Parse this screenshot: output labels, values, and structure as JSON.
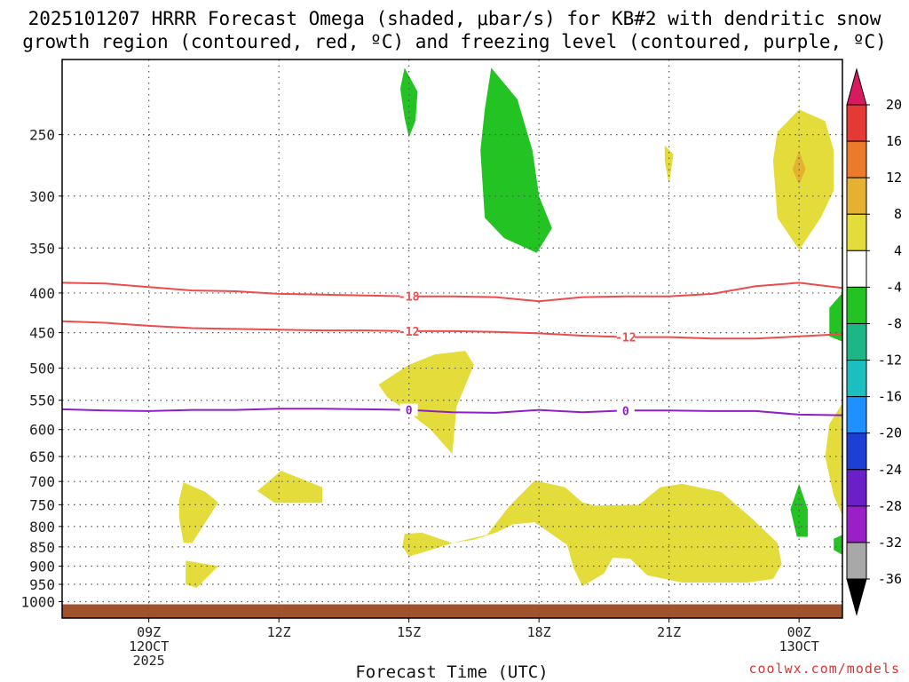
{
  "title_line1": "2025101207 HRRR Forecast Omega (shaded, μbar/s) for KB#2 with dendritic snow",
  "title_line2": "growth region (contoured, red, ºC) and freezing level (contoured, purple, ºC)",
  "credit": "coolwx.com/models",
  "chart_data": {
    "type": "heatmap",
    "title": "2025101207 HRRR Forecast Omega (shaded, μbar/s) for KB#2 with dendritic snow growth region (contoured, red, ºC) and freezing level (contoured, purple, ºC)",
    "xlabel": "Forecast Time (UTC)",
    "ylabel": "",
    "x_range_hours": [
      7,
      25
    ],
    "x_ticks": [
      {
        "hour": 9,
        "lines": [
          "09Z",
          "12OCT",
          "2025"
        ]
      },
      {
        "hour": 12,
        "lines": [
          "12Z"
        ]
      },
      {
        "hour": 15,
        "lines": [
          "15Z"
        ]
      },
      {
        "hour": 18,
        "lines": [
          "18Z"
        ]
      },
      {
        "hour": 21,
        "lines": [
          "21Z"
        ]
      },
      {
        "hour": 24,
        "lines": [
          "00Z",
          "13OCT"
        ]
      }
    ],
    "y_scale": "log-pressure",
    "y_range_hpa": [
      1050,
      200
    ],
    "y_ticks": [
      250,
      300,
      350,
      400,
      450,
      500,
      550,
      600,
      650,
      700,
      750,
      800,
      850,
      900,
      950,
      1000
    ],
    "grid": true,
    "colorbar": {
      "labels": [
        20,
        16,
        12,
        8,
        4,
        -4,
        -8,
        -12,
        -16,
        -20,
        -24,
        -28,
        -32,
        -36
      ],
      "colors": [
        "#d81b60",
        "#e53935",
        "#ec7a2b",
        "#e6b030",
        "#e4dc3a",
        "#ffffff",
        "#22c322",
        "#1db787",
        "#1cbfbf",
        "#1e90ff",
        "#1e3fd6",
        "#6a1fc9",
        "#9b1fc9",
        "#a8a8a8",
        "#000000"
      ]
    },
    "series": [
      {
        "name": "-18",
        "color": "#ec4c4c",
        "points": [
          [
            7,
            388
          ],
          [
            8,
            389
          ],
          [
            9,
            393
          ],
          [
            10,
            397
          ],
          [
            11,
            398
          ],
          [
            12,
            401
          ],
          [
            13,
            402
          ],
          [
            14,
            403
          ],
          [
            15,
            404
          ],
          [
            16,
            404
          ],
          [
            17,
            405
          ],
          [
            18,
            410
          ],
          [
            19,
            405
          ],
          [
            20,
            404
          ],
          [
            21,
            404
          ],
          [
            22,
            401
          ],
          [
            23,
            392
          ],
          [
            24,
            388
          ],
          [
            25,
            394
          ]
        ],
        "labels_at": [
          15
        ]
      },
      {
        "name": "-12",
        "color": "#ec4c4c",
        "points": [
          [
            7,
            435
          ],
          [
            8,
            437
          ],
          [
            9,
            441
          ],
          [
            10,
            444
          ],
          [
            11,
            445
          ],
          [
            12,
            446
          ],
          [
            13,
            447
          ],
          [
            14,
            447
          ],
          [
            15,
            448
          ],
          [
            16,
            448
          ],
          [
            17,
            449
          ],
          [
            18,
            451
          ],
          [
            19,
            454
          ],
          [
            20,
            456
          ],
          [
            21,
            456
          ],
          [
            22,
            458
          ],
          [
            23,
            458
          ],
          [
            24,
            455
          ],
          [
            25,
            452
          ]
        ],
        "labels_at": [
          15,
          20
        ]
      },
      {
        "name": "0",
        "color": "#8e1fc4",
        "points": [
          [
            7,
            565
          ],
          [
            8,
            567
          ],
          [
            9,
            568
          ],
          [
            10,
            566
          ],
          [
            11,
            566
          ],
          [
            12,
            564
          ],
          [
            13,
            564
          ],
          [
            14,
            565
          ],
          [
            15,
            566
          ],
          [
            16,
            570
          ],
          [
            17,
            571
          ],
          [
            18,
            566
          ],
          [
            19,
            570
          ],
          [
            20,
            567
          ],
          [
            21,
            567
          ],
          [
            22,
            568
          ],
          [
            23,
            568
          ],
          [
            24,
            574
          ],
          [
            25,
            575
          ]
        ],
        "labels_at": [
          15,
          20
        ]
      }
    ],
    "omega_areas": [
      {
        "range": "-8 to -4",
        "color": "#22c322",
        "polygon": [
          [
            14.9,
            205
          ],
          [
            15.2,
            220
          ],
          [
            15.15,
            240
          ],
          [
            15.0,
            252
          ],
          [
            14.9,
            238
          ],
          [
            14.8,
            218
          ]
        ]
      },
      {
        "range": "-8 to -4",
        "color": "#22c322",
        "polygon": [
          [
            16.9,
            205
          ],
          [
            16.75,
            232
          ],
          [
            16.65,
            262
          ],
          [
            16.75,
            320
          ],
          [
            17.2,
            340
          ],
          [
            17.95,
            355
          ],
          [
            18.3,
            330
          ],
          [
            18.0,
            300
          ],
          [
            17.85,
            262
          ],
          [
            17.5,
            225
          ]
        ]
      },
      {
        "range": "-8 to -4",
        "color": "#22c322",
        "polygon": [
          [
            24.7,
            418
          ],
          [
            25,
            400
          ],
          [
            25,
            462
          ],
          [
            24.7,
            455
          ]
        ]
      },
      {
        "range": "-8 to -4",
        "color": "#22c322",
        "polygon": [
          [
            24.0,
            705
          ],
          [
            24.2,
            760
          ],
          [
            24.2,
            825
          ],
          [
            23.95,
            825
          ],
          [
            23.8,
            760
          ]
        ]
      },
      {
        "range": "-8 to -4",
        "color": "#22c322",
        "polygon": [
          [
            24.8,
            830
          ],
          [
            25,
            820
          ],
          [
            25,
            870
          ],
          [
            24.8,
            858
          ]
        ]
      },
      {
        "range": "4 to 8",
        "color": "#e4dc3a",
        "polygon": [
          [
            20.9,
            258
          ],
          [
            21.1,
            265
          ],
          [
            21.0,
            290
          ],
          [
            20.9,
            270
          ]
        ]
      },
      {
        "range": "4 to 8",
        "color": "#e4dc3a",
        "polygon": [
          [
            24.0,
            232
          ],
          [
            24.6,
            240
          ],
          [
            24.8,
            262
          ],
          [
            24.8,
            295
          ],
          [
            24.5,
            320
          ],
          [
            24.0,
            352
          ],
          [
            23.5,
            320
          ],
          [
            23.4,
            270
          ],
          [
            23.5,
            248
          ]
        ]
      },
      {
        "range": "8 to 12",
        "color": "#e6b030",
        "polygon": [
          [
            24.0,
            262
          ],
          [
            24.15,
            277
          ],
          [
            24.0,
            290
          ],
          [
            23.85,
            277
          ]
        ]
      },
      {
        "range": "4 to 8",
        "color": "#e4dc3a",
        "polygon": [
          [
            14.3,
            525
          ],
          [
            15.0,
            495
          ],
          [
            15.6,
            480
          ],
          [
            16.3,
            475
          ],
          [
            16.5,
            495
          ],
          [
            16.1,
            560
          ],
          [
            16.0,
            645
          ],
          [
            15.5,
            600
          ],
          [
            14.9,
            565
          ],
          [
            14.5,
            545
          ]
        ]
      },
      {
        "range": "4 to 8",
        "color": "#e4dc3a",
        "polygon": [
          [
            25,
            555
          ],
          [
            24.7,
            590
          ],
          [
            24.6,
            650
          ],
          [
            24.8,
            730
          ],
          [
            25,
            775
          ]
        ]
      },
      {
        "range": "4 to 8",
        "color": "#e4dc3a",
        "polygon": [
          [
            9.8,
            702
          ],
          [
            10.3,
            722
          ],
          [
            10.6,
            745
          ],
          [
            10.0,
            840
          ],
          [
            9.8,
            840
          ],
          [
            9.7,
            780
          ],
          [
            9.7,
            740
          ]
        ]
      },
      {
        "range": "4 to 8",
        "color": "#e4dc3a",
        "polygon": [
          [
            9.85,
            885
          ],
          [
            10.6,
            900
          ],
          [
            10.1,
            960
          ],
          [
            9.85,
            950
          ]
        ]
      },
      {
        "range": "4 to 8",
        "color": "#e4dc3a",
        "polygon": [
          [
            12.05,
            678
          ],
          [
            13.0,
            712
          ],
          [
            13.0,
            746
          ],
          [
            11.9,
            746
          ],
          [
            11.5,
            720
          ]
        ]
      },
      {
        "range": "4 to 8",
        "color": "#e4dc3a",
        "polygon": [
          [
            14.9,
            818
          ],
          [
            15.3,
            815
          ],
          [
            16.0,
            840
          ],
          [
            15.5,
            858
          ],
          [
            15.0,
            875
          ],
          [
            14.85,
            848
          ]
        ]
      },
      {
        "range": "4 to 8",
        "color": "#e4dc3a",
        "polygon": [
          [
            16.0,
            840
          ],
          [
            16.8,
            820
          ],
          [
            17.3,
            755
          ],
          [
            17.9,
            698
          ],
          [
            18.6,
            712
          ],
          [
            19.0,
            745
          ],
          [
            19.3,
            752
          ],
          [
            20.3,
            750
          ],
          [
            20.8,
            712
          ],
          [
            21.3,
            705
          ],
          [
            22.2,
            722
          ],
          [
            22.9,
            780
          ],
          [
            23.5,
            840
          ],
          [
            23.6,
            895
          ],
          [
            23.4,
            935
          ],
          [
            22.8,
            945
          ],
          [
            21.3,
            945
          ],
          [
            20.5,
            925
          ],
          [
            20.1,
            880
          ],
          [
            19.7,
            878
          ],
          [
            19.5,
            920
          ],
          [
            19.0,
            955
          ],
          [
            18.8,
            905
          ],
          [
            18.65,
            845
          ],
          [
            17.9,
            790
          ],
          [
            17.4,
            795
          ],
          [
            17.0,
            815
          ],
          [
            16.5,
            832
          ]
        ]
      }
    ],
    "ground": {
      "color": "#a0522d",
      "from_hpa": 1008
    }
  }
}
